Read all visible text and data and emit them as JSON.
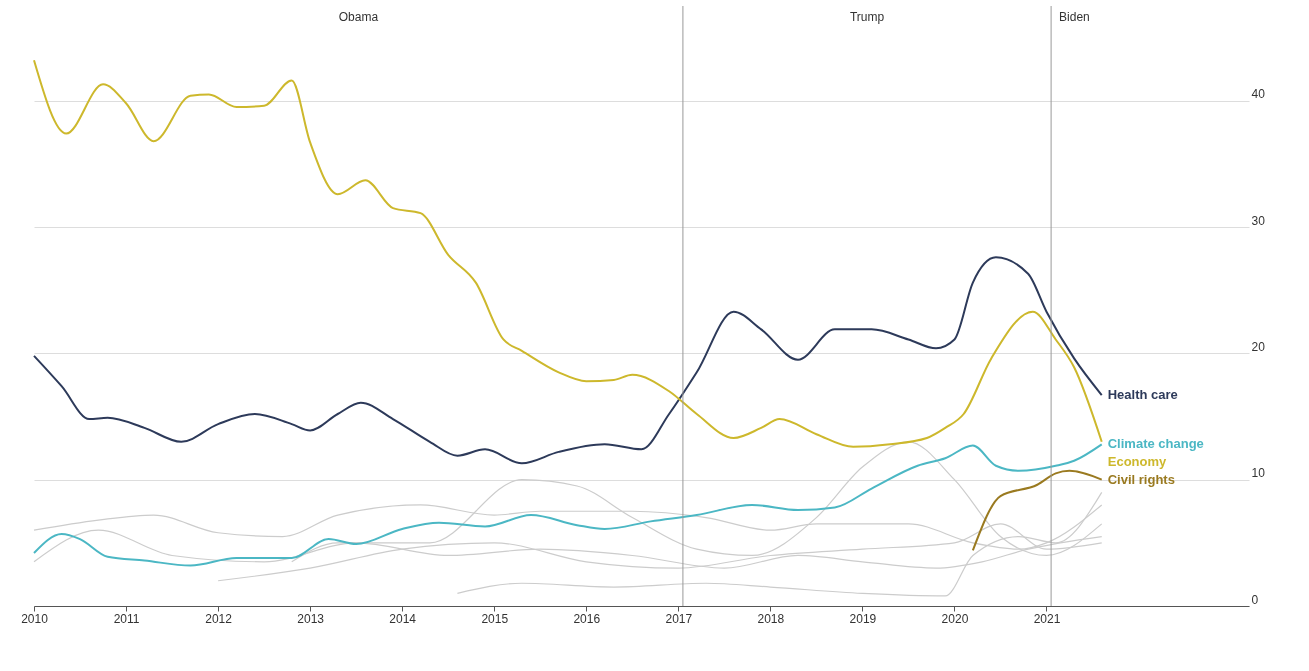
{
  "chart_data": {
    "type": "line",
    "xlim": [
      2010,
      2023.2
    ],
    "xticks": [
      2010,
      2011,
      2012,
      2013,
      2014,
      2015,
      2016,
      2017,
      2018,
      2019,
      2020,
      2021
    ],
    "ylim": [
      0,
      47.5
    ],
    "yticks": [
      0,
      10,
      20,
      30,
      40
    ],
    "grid": "y",
    "ref_lines": [
      {
        "axis": "x",
        "value": 2017.05,
        "color": "#999999"
      },
      {
        "axis": "x",
        "value": 2021.05,
        "color": "#999999"
      }
    ],
    "annotations": [
      "Obama",
      "Trump",
      "Biden"
    ],
    "series": [
      {
        "color": "#cccccc",
        "x": [
          2010,
          2010.7,
          2011.3,
          2012,
          2012.7,
          2013.3,
          2014.2,
          2015,
          2015.5,
          2016.5,
          2017.3,
          2018,
          2018.5,
          2019.5,
          2020.2,
          2020.7,
          2021,
          2021.6
        ],
        "values": [
          6.0,
          6.8,
          7.2,
          5.8,
          5.5,
          7.2,
          8.0,
          7.2,
          7.5,
          7.5,
          7.0,
          6.0,
          6.5,
          6.5,
          5.0,
          4.5,
          5.0,
          8.0
        ]
      },
      {
        "color": "#cccccc",
        "x": [
          2012.8,
          2013.3,
          2014.3,
          2015.3,
          2015.9,
          2016.5,
          2017.2,
          2017.8,
          2018.5,
          2019.0,
          2019.5,
          2020.0,
          2020.5,
          2021,
          2021.6
        ],
        "values": [
          3.5,
          5.0,
          5.0,
          10.0,
          9.5,
          7.0,
          4.5,
          4.0,
          7.0,
          11.0,
          13.0,
          10.0,
          5.5,
          4.0,
          6.5
        ]
      },
      {
        "color": "#cccccc",
        "x": [
          2014.6,
          2015.3,
          2016.3,
          2017.3,
          2018,
          2019,
          2019.9,
          2020.2,
          2020.7,
          2021.1,
          2021.6
        ],
        "values": [
          1.0,
          1.8,
          1.5,
          1.8,
          1.5,
          1.0,
          0.8,
          4.0,
          5.5,
          5.0,
          9.0
        ]
      },
      {
        "color": "#cccccc",
        "x": [
          2010,
          2010.7,
          2011.5,
          2012.5,
          2013.5,
          2014.5,
          2015.5,
          2016.5,
          2017.5,
          2018.3,
          2019,
          2019.8,
          2020.3,
          2020.8,
          2021.6
        ],
        "values": [
          3.5,
          6.0,
          4.0,
          3.5,
          5.0,
          4.0,
          4.5,
          4.0,
          3.0,
          4.0,
          3.5,
          3.0,
          3.5,
          4.5,
          5.5
        ]
      },
      {
        "color": "#cccccc",
        "x": [
          2012,
          2013,
          2014,
          2015,
          2016,
          2017,
          2018,
          2019,
          2020,
          2020.5,
          2021,
          2021.6
        ],
        "values": [
          2.0,
          3.0,
          4.5,
          5.0,
          3.5,
          3.0,
          4.0,
          4.5,
          5.0,
          6.5,
          4.5,
          5.0
        ]
      },
      {
        "name": "Health care",
        "color": "#2d3a5a",
        "x": [
          2010,
          2010.3,
          2010.6,
          2010.8,
          2011.2,
          2011.6,
          2012.0,
          2012.4,
          2012.8,
          2013.0,
          2013.3,
          2013.55,
          2013.9,
          2014.3,
          2014.6,
          2014.9,
          2015.3,
          2015.7,
          2016.2,
          2016.6,
          2016.9,
          2017.2,
          2017.6,
          2017.9,
          2018.3,
          2018.7,
          2019.1,
          2019.5,
          2019.8,
          2020.0,
          2020.2,
          2020.45,
          2020.8,
          2021.0,
          2021.3,
          2021.6
        ],
        "values": [
          19.8,
          17.4,
          14.8,
          14.9,
          14.1,
          13.0,
          14.4,
          15.2,
          14.4,
          13.9,
          15.2,
          16.1,
          14.8,
          13.0,
          11.9,
          12.4,
          11.3,
          12.2,
          12.8,
          12.4,
          15.2,
          18.5,
          23.3,
          21.9,
          19.5,
          21.9,
          21.9,
          21.1,
          20.4,
          21.1,
          25.6,
          27.6,
          26.3,
          23.3,
          19.6,
          16.7
        ]
      },
      {
        "name": "Climate change",
        "color": "#4bb7c4",
        "x": [
          2010,
          2010.3,
          2010.5,
          2010.8,
          2011.2,
          2011.7,
          2012.2,
          2012.8,
          2013.2,
          2013.5,
          2014.0,
          2014.4,
          2014.9,
          2015.4,
          2015.9,
          2016.2,
          2016.7,
          2017.2,
          2017.8,
          2018.3,
          2018.7,
          2019.1,
          2019.6,
          2019.9,
          2020.2,
          2020.45,
          2020.7,
          2021.1,
          2021.3,
          2021.6
        ],
        "values": [
          4.2,
          5.7,
          5.3,
          3.9,
          3.6,
          3.2,
          3.8,
          3.8,
          5.3,
          4.9,
          6.1,
          6.6,
          6.3,
          7.2,
          6.4,
          6.1,
          6.7,
          7.2,
          8.0,
          7.6,
          7.8,
          9.3,
          11.1,
          11.7,
          12.7,
          11.1,
          10.7,
          11.1,
          11.5,
          12.8
        ]
      },
      {
        "name": "Economy",
        "color": "#cdb82c",
        "x": [
          2010,
          2010.35,
          2010.75,
          2011.0,
          2011.3,
          2011.7,
          2011.9,
          2012.2,
          2012.5,
          2012.8,
          2013.0,
          2013.3,
          2013.6,
          2013.9,
          2014.2,
          2014.5,
          2014.8,
          2015.1,
          2015.3,
          2015.7,
          2016.0,
          2016.3,
          2016.5,
          2016.9,
          2017.2,
          2017.6,
          2017.9,
          2018.1,
          2018.5,
          2018.9,
          2019.3,
          2019.7,
          2019.9,
          2020.1,
          2020.4,
          2020.85,
          2021.1,
          2021.3,
          2021.6
        ],
        "values": [
          43.2,
          37.4,
          41.3,
          39.8,
          36.8,
          40.4,
          40.5,
          39.5,
          39.6,
          41.6,
          36.7,
          32.6,
          33.7,
          31.5,
          31.1,
          27.8,
          25.6,
          21.1,
          20.2,
          18.5,
          17.8,
          17.9,
          18.3,
          17.0,
          15.2,
          13.3,
          14.1,
          14.8,
          13.6,
          12.6,
          12.8,
          13.3,
          14.1,
          15.2,
          19.6,
          23.3,
          21.1,
          18.9,
          13.0
        ]
      },
      {
        "name": "Civil rights",
        "color": "#9a7a20",
        "x": [
          2020.2,
          2020.5,
          2020.9,
          2021.1,
          2021.25,
          2021.6
        ],
        "values": [
          4.4,
          8.7,
          9.6,
          10.5,
          10.7,
          10.0
        ]
      }
    ]
  }
}
